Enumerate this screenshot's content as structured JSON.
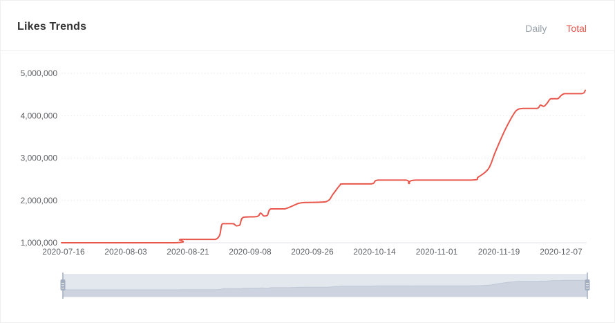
{
  "header": {
    "title": "Likes Trends",
    "tabs": [
      {
        "label": "Daily",
        "active": false
      },
      {
        "label": "Total",
        "active": true
      }
    ]
  },
  "colors": {
    "accent": "#e8564c",
    "title_text": "#333333",
    "tab_inactive": "#98a0a8",
    "axis_label": "#606266",
    "grid_dotted": "#e5e8ed",
    "axis_line": "#e0e3e9",
    "slider_track": "#e3e7ee",
    "slider_shadow_fill": "#cdd4e0",
    "slider_shadow_line": "#bfc8d6",
    "slider_handle": "#a3aec0",
    "slider_border": "#d6dbe4"
  },
  "chart_data": {
    "type": "line",
    "title": "Likes Trends",
    "series_name": "Total",
    "legend": "none",
    "grid": "dotted-horizontal",
    "x_type": "date",
    "x_range": [
      "2020-07-15",
      "2020-12-14"
    ],
    "ylim": [
      1000000,
      5000000
    ],
    "ytick_values": [
      1000000,
      2000000,
      3000000,
      4000000,
      5000000
    ],
    "ytick_labels": [
      "1,000,000",
      "2,000,000",
      "3,000,000",
      "4,000,000",
      "5,000,000"
    ],
    "xticks": [
      "2020-07-16",
      "2020-08-03",
      "2020-08-21",
      "2020-09-08",
      "2020-09-26",
      "2020-10-14",
      "2020-11-01",
      "2020-11-19",
      "2020-12-07"
    ],
    "line_color": "#e8564c",
    "points": [
      [
        "2020-07-15",
        1000000
      ],
      [
        "2020-08-17",
        1000000
      ],
      [
        "2020-08-19",
        1080000
      ],
      [
        "2020-08-29",
        1080000
      ],
      [
        "2020-08-31",
        1450000
      ],
      [
        "2020-09-03",
        1450000
      ],
      [
        "2020-09-04",
        1400000
      ],
      [
        "2020-09-05",
        1420000
      ],
      [
        "2020-09-06",
        1600000
      ],
      [
        "2020-09-10",
        1620000
      ],
      [
        "2020-09-11",
        1700000
      ],
      [
        "2020-09-12",
        1630000
      ],
      [
        "2020-09-13",
        1650000
      ],
      [
        "2020-09-14",
        1800000
      ],
      [
        "2020-09-18",
        1800000
      ],
      [
        "2020-09-22",
        1930000
      ],
      [
        "2020-09-24",
        1950000
      ],
      [
        "2020-09-30",
        1970000
      ],
      [
        "2020-10-02",
        2150000
      ],
      [
        "2020-10-04",
        2360000
      ],
      [
        "2020-10-05",
        2390000
      ],
      [
        "2020-10-13",
        2390000
      ],
      [
        "2020-10-15",
        2480000
      ],
      [
        "2020-10-23",
        2480000
      ],
      [
        "2020-10-24",
        2400000
      ],
      [
        "2020-10-26",
        2480000
      ],
      [
        "2020-11-11",
        2480000
      ],
      [
        "2020-11-13",
        2550000
      ],
      [
        "2020-11-16",
        2750000
      ],
      [
        "2020-11-18",
        3150000
      ],
      [
        "2020-11-21",
        3700000
      ],
      [
        "2020-11-24",
        4120000
      ],
      [
        "2020-11-26",
        4170000
      ],
      [
        "2020-11-30",
        4170000
      ],
      [
        "2020-12-01",
        4250000
      ],
      [
        "2020-12-02",
        4220000
      ],
      [
        "2020-12-03",
        4300000
      ],
      [
        "2020-12-04",
        4400000
      ],
      [
        "2020-12-06",
        4400000
      ],
      [
        "2020-12-08",
        4520000
      ],
      [
        "2020-12-13",
        4520000
      ],
      [
        "2020-12-14",
        4600000
      ]
    ]
  }
}
